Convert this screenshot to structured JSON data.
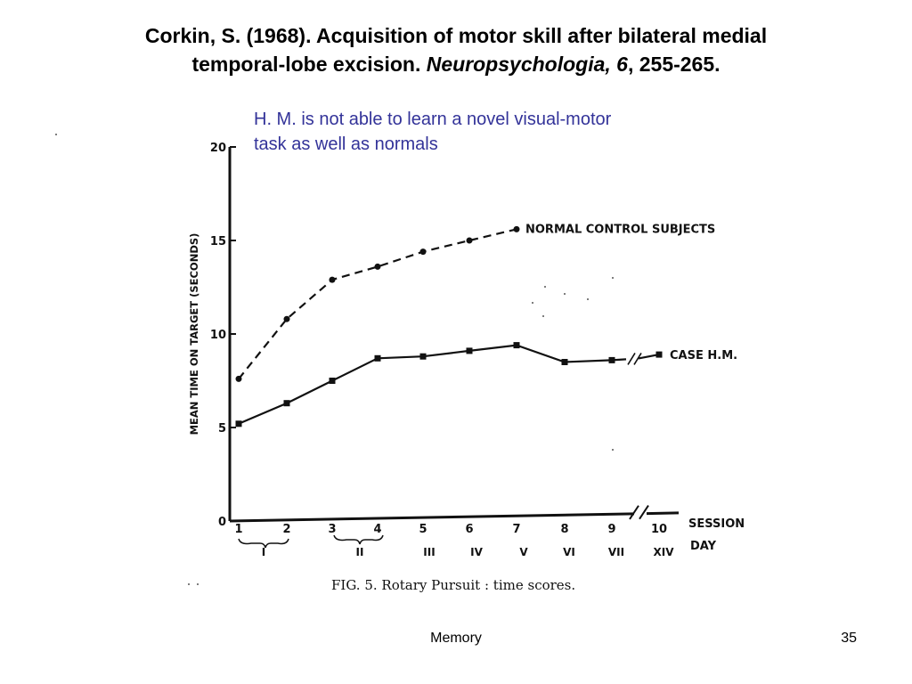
{
  "slide": {
    "citation_line1": "Corkin, S. (1968). Acquisition of motor skill after bilateral medial",
    "citation_line2_plain": "temporal-lobe excision.",
    "citation_journal": "Neuropsychologia, 6",
    "citation_pages": ", 255-265.",
    "annotation_line1": "H. M. is not able  to learn a novel visual-motor",
    "annotation_line2": "task as well as normals",
    "footer": "Memory",
    "page_number": "35"
  },
  "colors": {
    "annotation": "#333399",
    "ink": "#111111"
  },
  "chart_data": {
    "type": "line",
    "title": "",
    "caption": "FIG. 5.  Rotary Pursuit : time scores.",
    "ylabel": "MEAN TIME ON TARGET (SECONDS)",
    "xlabel": "SESSION",
    "x_secondary_label": "DAY",
    "ylim": [
      0,
      20
    ],
    "yticks": [
      0,
      5,
      10,
      15,
      20
    ],
    "sessions": [
      "1",
      "2",
      "3",
      "4",
      "5",
      "6",
      "7",
      "8",
      "9",
      "10"
    ],
    "days": [
      "I",
      "II",
      "III",
      "IV",
      "V",
      "VI",
      "VII",
      "XIV"
    ],
    "series": [
      {
        "name": "NORMAL CONTROL SUBJECTS",
        "line_style": "dashed",
        "marker": "circle",
        "x": [
          1,
          2,
          3,
          4,
          5,
          6,
          7
        ],
        "values": [
          7.6,
          10.8,
          12.9,
          13.6,
          14.4,
          15.0,
          15.6
        ]
      },
      {
        "name": "CASE H.M.",
        "line_style": "solid",
        "marker": "square",
        "x": [
          1,
          2,
          3,
          4,
          5,
          6,
          7,
          8,
          9,
          10
        ],
        "values": [
          5.2,
          6.3,
          7.5,
          8.7,
          8.8,
          9.1,
          9.4,
          8.5,
          8.6,
          8.9
        ]
      }
    ],
    "axis_break": "between session 9 and 10",
    "grid": false,
    "legend": "inline labels at line ends"
  }
}
